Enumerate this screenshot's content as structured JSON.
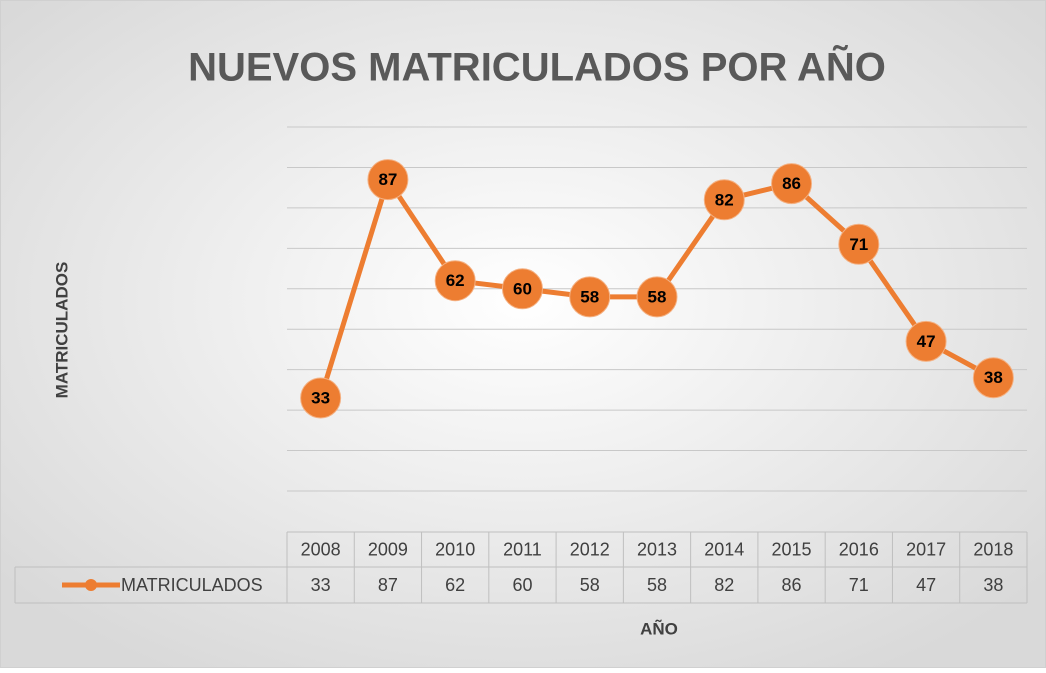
{
  "chart_data": {
    "type": "line",
    "title": "NUEVOS MATRICULADOS POR AÑO",
    "y_label": "MATRICULADOS",
    "x_label": "AÑO",
    "categories": [
      "2008",
      "2009",
      "2010",
      "2011",
      "2012",
      "2013",
      "2014",
      "2015",
      "2016",
      "2017",
      "2018"
    ],
    "series": [
      {
        "name": "MATRICULADOS",
        "color": "#ed7d31",
        "values": [
          33,
          87,
          62,
          60,
          58,
          58,
          82,
          86,
          71,
          47,
          38
        ]
      }
    ],
    "ylim": [
      10,
      100
    ],
    "yticks": [
      10,
      20,
      30,
      40,
      50,
      60,
      70,
      80,
      90,
      100
    ],
    "grid": true,
    "data_table": true
  }
}
